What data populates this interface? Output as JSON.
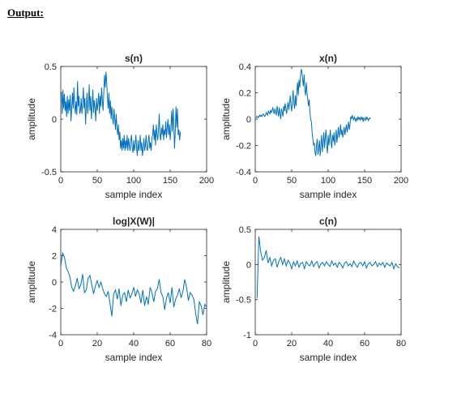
{
  "heading": "Output:",
  "chart_data": [
    {
      "type": "line",
      "title": "s(n)",
      "xlabel": "sample index",
      "ylabel": "amplitude",
      "xlim": [
        0,
        200
      ],
      "ylim": [
        -0.5,
        0.5
      ],
      "xticks": [
        0,
        50,
        100,
        150,
        200
      ],
      "yticks": [
        -0.5,
        0,
        0.5
      ],
      "xtick_labels": [
        "0",
        "50",
        "100",
        "150",
        "200"
      ],
      "ytick_labels": [
        "-0.5",
        "0",
        "0.5"
      ],
      "color": "#0072BD",
      "series": [
        {
          "x_start": 1,
          "x_step": 1,
          "values": [
            0.26,
            0.05,
            0.28,
            0.1,
            0.24,
            0.08,
            0.17,
            0.02,
            0.22,
            0.05,
            0.19,
            0.08,
            0.23,
            -0.02,
            0.1,
            0.25,
            0.1,
            0.3,
            0.15,
            0.05,
            0.17,
            0.04,
            0.36,
            0.12,
            0.22,
            0.05,
            0.08,
            0.2,
            0.05,
            0.15,
            0.3,
            0.1,
            0.2,
            -0.05,
            0.12,
            0.25,
            0.05,
            0.15,
            0.33,
            0.08,
            0.22,
            0.0,
            0.12,
            0.28,
            0.06,
            0.18,
            0.1,
            -0.02,
            0.2,
            0.08,
            0.15,
            0.25,
            0.05,
            0.22,
            0.12,
            0.3,
            0.18,
            0.08,
            0.25,
            0.42,
            0.3,
            0.45,
            0.35,
            0.2,
            0.1,
            0.25,
            0.05,
            0.18,
            0.0,
            0.12,
            0.02,
            -0.05,
            0.1,
            0.0,
            -0.1,
            0.05,
            -0.08,
            -0.15,
            -0.05,
            -0.2,
            -0.12,
            -0.28,
            -0.2,
            -0.3,
            -0.18,
            -0.28,
            -0.15,
            -0.3,
            -0.2,
            -0.28,
            -0.15,
            -0.3,
            -0.18,
            -0.25,
            -0.3,
            -0.2,
            -0.15,
            -0.28,
            -0.32,
            -0.2,
            -0.3,
            -0.25,
            -0.15,
            -0.28,
            -0.35,
            -0.2,
            -0.3,
            -0.25,
            -0.15,
            -0.3,
            -0.22,
            -0.35,
            -0.28,
            -0.18,
            -0.3,
            -0.25,
            -0.15,
            -0.28,
            -0.3,
            -0.2,
            -0.15,
            -0.28,
            -0.22,
            -0.3,
            -0.18,
            -0.15,
            -0.05,
            -0.2,
            -0.1,
            -0.25,
            -0.05,
            -0.15,
            -0.2,
            -0.1,
            0.05,
            -0.15,
            -0.2,
            -0.08,
            -0.15,
            -0.05,
            -0.2,
            -0.1,
            -0.15,
            -0.02,
            -0.18,
            -0.08,
            0.0,
            -0.15,
            -0.05,
            -0.2,
            -0.1,
            0.08,
            -0.12,
            0.1,
            -0.05,
            -0.28,
            -0.12,
            0.12,
            -0.08,
            0.1,
            -0.15,
            -0.1,
            -0.2,
            -0.12
          ]
        }
      ]
    },
    {
      "type": "line",
      "title": "x(n)",
      "xlabel": "sample index",
      "ylabel": "amplitude",
      "xlim": [
        0,
        200
      ],
      "ylim": [
        -0.4,
        0.4
      ],
      "xticks": [
        0,
        50,
        100,
        150,
        200
      ],
      "yticks": [
        -0.4,
        -0.2,
        0,
        0.2,
        0.4
      ],
      "xtick_labels": [
        "0",
        "50",
        "100",
        "150",
        "200"
      ],
      "ytick_labels": [
        "-0.4",
        "-0.2",
        "0",
        "0.2",
        "0.4"
      ],
      "color": "#0072BD",
      "series": [
        {
          "x_start": 1,
          "x_step": 1,
          "values": [
            0.01,
            0.02,
            0.02,
            0.01,
            0.02,
            0.03,
            0.02,
            0.03,
            0.02,
            0.03,
            0.04,
            0.03,
            0.02,
            0.03,
            0.05,
            0.04,
            0.03,
            0.06,
            0.05,
            0.04,
            0.07,
            0.05,
            0.06,
            0.09,
            0.06,
            0.04,
            0.08,
            0.05,
            0.03,
            0.1,
            0.06,
            0.02,
            0.09,
            0.04,
            0.0,
            0.08,
            0.05,
            0.02,
            0.1,
            0.06,
            0.12,
            0.08,
            0.04,
            0.09,
            0.13,
            0.07,
            0.12,
            0.18,
            0.1,
            0.06,
            0.15,
            0.22,
            0.12,
            0.08,
            0.18,
            0.1,
            0.2,
            0.28,
            0.18,
            0.3,
            0.24,
            0.32,
            0.38,
            0.36,
            0.3,
            0.25,
            0.34,
            0.22,
            0.18,
            0.28,
            0.2,
            0.15,
            0.1,
            0.15,
            0.05,
            0.0,
            -0.02,
            -0.1,
            -0.15,
            -0.2,
            -0.18,
            -0.25,
            -0.28,
            -0.2,
            -0.15,
            -0.27,
            -0.22,
            -0.16,
            -0.28,
            -0.2,
            -0.12,
            -0.25,
            -0.18,
            -0.1,
            -0.22,
            -0.14,
            -0.08,
            -0.2,
            -0.26,
            -0.12,
            -0.2,
            -0.14,
            -0.08,
            -0.18,
            -0.22,
            -0.12,
            -0.17,
            -0.1,
            -0.2,
            -0.15,
            -0.08,
            -0.18,
            -0.12,
            -0.06,
            -0.14,
            -0.1,
            -0.04,
            -0.12,
            -0.08,
            -0.14,
            -0.1,
            -0.06,
            -0.12,
            -0.08,
            -0.04,
            -0.1,
            -0.06,
            -0.02,
            -0.08,
            -0.04,
            0.02,
            0.0,
            0.03,
            0.01,
            -0.01,
            0.02,
            0.0,
            -0.02,
            0.01,
            -0.01,
            0.02,
            0.0,
            0.01,
            -0.01,
            0.02,
            0.0,
            0.01,
            -0.02,
            0.01,
            0.0,
            -0.01,
            0.02,
            0.0,
            0.01,
            -0.01,
            0.0,
            0.01,
            0.0
          ]
        }
      ]
    },
    {
      "type": "line",
      "title": "log|X(W)|",
      "xlabel": "sample index",
      "ylabel": "amplitude",
      "xlim": [
        0,
        80
      ],
      "ylim": [
        -4,
        4
      ],
      "xticks": [
        0,
        20,
        40,
        60,
        80
      ],
      "yticks": [
        -4,
        -2,
        0,
        2,
        4
      ],
      "xtick_labels": [
        "0",
        "20",
        "40",
        "60",
        "80"
      ],
      "ytick_labels": [
        "-4",
        "-2",
        "0",
        "2",
        "4"
      ],
      "color": "#0072BD",
      "series": [
        {
          "x_start": 0,
          "x_step": 1,
          "values": [
            1.2,
            2.2,
            1.9,
            1.1,
            0.8,
            0.4,
            -0.4,
            -0.7,
            -0.3,
            0.3,
            -0.5,
            -0.2,
            0.6,
            -0.8,
            -0.6,
            0.3,
            0.5,
            -0.2,
            -0.9,
            -0.3,
            0.1,
            -0.4,
            0.0,
            -0.5,
            -0.9,
            -1.1,
            -0.7,
            -1.6,
            -2.6,
            -0.9,
            -0.6,
            -1.3,
            -0.5,
            -1.8,
            -1.0,
            -0.8,
            -1.5,
            -0.6,
            -1.2,
            -0.9,
            -0.4,
            -1.1,
            -0.6,
            -0.9,
            -1.6,
            -0.6,
            -1.8,
            -1.1,
            -1.7,
            -0.4,
            -0.8,
            -1.5,
            -0.7,
            -0.5,
            0.2,
            -0.8,
            -1.1,
            -2.1,
            -1.2,
            -0.8,
            -1.6,
            -0.4,
            -1.9,
            -1.3,
            -1.0,
            -0.5,
            -1.2,
            -0.7,
            0.2,
            -0.4,
            -1.4,
            -0.8,
            -1.0,
            -1.3,
            -2.4,
            -3.2,
            -1.5,
            -1.8,
            -2.5,
            -1.7,
            -1.9
          ]
        }
      ]
    },
    {
      "type": "line",
      "title": "c(n)",
      "xlabel": "sample index",
      "ylabel": "amplitude",
      "xlim": [
        0,
        80
      ],
      "ylim": [
        -1,
        0.5
      ],
      "xticks": [
        0,
        20,
        40,
        60,
        80
      ],
      "yticks": [
        -1,
        -0.5,
        0,
        0.5
      ],
      "xtick_labels": [
        "0",
        "20",
        "40",
        "60",
        "80"
      ],
      "ytick_labels": [
        "-1",
        "-0.5",
        "0",
        "0.5"
      ],
      "color": "#0072BD",
      "series": [
        {
          "x_start": 1,
          "x_step": 1,
          "values": [
            -0.48,
            0.4,
            0.18,
            0.06,
            0.1,
            0.2,
            0.02,
            0.1,
            -0.02,
            0.06,
            0.08,
            -0.04,
            0.05,
            0.1,
            0.0,
            0.08,
            -0.02,
            0.06,
            0.02,
            -0.06,
            0.04,
            -0.02,
            0.05,
            -0.04,
            0.02,
            0.03,
            -0.06,
            0.04,
            0.0,
            -0.02,
            0.05,
            -0.03,
            0.02,
            0.04,
            -0.05,
            0.01,
            0.03,
            -0.02,
            0.04,
            0.0,
            -0.03,
            0.05,
            -0.01,
            0.02,
            -0.04,
            0.03,
            0.0,
            -0.05,
            0.02,
            0.04,
            -0.02,
            0.01,
            -0.03,
            0.05,
            0.0,
            -0.04,
            0.02,
            0.03,
            -0.02,
            0.04,
            -0.05,
            0.01,
            0.03,
            -0.02,
            0.0,
            0.04,
            -0.03,
            0.02,
            -0.01,
            0.03,
            -0.04,
            0.02,
            0.0,
            -0.02,
            0.03,
            -0.06,
            0.01,
            -0.03,
            -0.05
          ]
        }
      ]
    }
  ]
}
